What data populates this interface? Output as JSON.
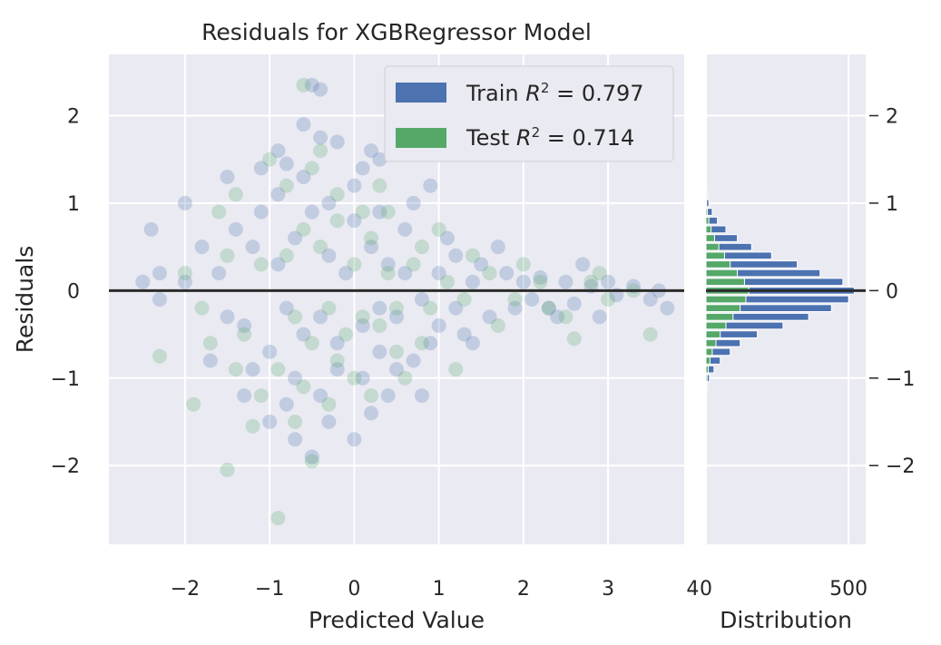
{
  "colors": {
    "background": "#eaeaf2",
    "grid": "#ffffff",
    "train": "#4c72b0",
    "test": "#55a868",
    "zero_line": "#2b2b2b"
  },
  "chart_data": [
    {
      "type": "scatter",
      "title": "Residuals for XGBRegressor Model",
      "xlabel": "Predicted Value",
      "ylabel": "Residuals",
      "xlim": [
        -2.9,
        3.9
      ],
      "ylim": [
        -2.9,
        2.7
      ],
      "xticks": [
        -2,
        -1,
        0,
        1,
        2,
        3,
        4
      ],
      "xtick_labels": [
        "−2",
        "−1",
        "0",
        "1",
        "2",
        "3",
        "4"
      ],
      "yticks": [
        -2,
        -1,
        0,
        1,
        2
      ],
      "ytick_labels": [
        "−2",
        "−1",
        "0",
        "1",
        "2"
      ],
      "grid": true,
      "hline": 0,
      "legend_position": "top-right",
      "series": [
        {
          "name": "Train R² = 0.797",
          "label_prefix": "Train",
          "r2": "0.797",
          "color": "#4c72b0",
          "points": [
            [
              -0.9,
              0.3
            ],
            [
              -0.8,
              -0.2
            ],
            [
              -0.7,
              0.6
            ],
            [
              -0.6,
              -0.5
            ],
            [
              -0.5,
              0.9
            ],
            [
              -0.4,
              -0.3
            ],
            [
              -0.3,
              0.4
            ],
            [
              -0.2,
              -0.6
            ],
            [
              -0.1,
              0.2
            ],
            [
              0.0,
              0.8
            ],
            [
              0.1,
              -0.4
            ],
            [
              0.2,
              0.5
            ],
            [
              0.3,
              -0.2
            ],
            [
              0.4,
              0.3
            ],
            [
              0.5,
              -0.3
            ],
            [
              0.6,
              0.2
            ],
            [
              0.8,
              -0.1
            ],
            [
              1.0,
              0.2
            ],
            [
              1.2,
              -0.2
            ],
            [
              1.4,
              0.1
            ],
            [
              -1.0,
              -0.7
            ],
            [
              -0.9,
              1.1
            ],
            [
              -0.7,
              -1.0
            ],
            [
              -0.6,
              1.3
            ],
            [
              -0.4,
              -1.2
            ],
            [
              -0.3,
              1.0
            ],
            [
              -0.2,
              -0.9
            ],
            [
              0.0,
              1.2
            ],
            [
              0.1,
              -1.0
            ],
            [
              0.3,
              0.9
            ],
            [
              -1.2,
              0.5
            ],
            [
              -1.3,
              -0.4
            ],
            [
              -1.4,
              0.7
            ],
            [
              -1.5,
              -0.3
            ],
            [
              -1.6,
              0.2
            ],
            [
              -1.8,
              0.5
            ],
            [
              -2.0,
              0.1
            ],
            [
              -2.3,
              0.2
            ],
            [
              -2.5,
              0.1
            ],
            [
              -1.1,
              0.9
            ],
            [
              -0.5,
              2.35
            ],
            [
              -0.4,
              2.3
            ],
            [
              -0.6,
              1.9
            ],
            [
              -0.4,
              1.75
            ],
            [
              -0.2,
              1.7
            ],
            [
              0.2,
              1.6
            ],
            [
              0.3,
              1.5
            ],
            [
              -0.9,
              1.6
            ],
            [
              -1.1,
              1.4
            ],
            [
              -1.5,
              1.3
            ],
            [
              -2.0,
              1.0
            ],
            [
              -2.4,
              0.7
            ],
            [
              -2.3,
              -0.1
            ],
            [
              -1.7,
              -0.8
            ],
            [
              -1.3,
              -1.2
            ],
            [
              -1.0,
              -1.5
            ],
            [
              -0.7,
              -1.7
            ],
            [
              -0.5,
              -1.9
            ],
            [
              0.0,
              -1.7
            ],
            [
              0.2,
              -1.4
            ],
            [
              0.4,
              -1.2
            ],
            [
              0.5,
              -0.9
            ],
            [
              0.7,
              -0.8
            ],
            [
              0.8,
              -1.2
            ],
            [
              0.9,
              -0.6
            ],
            [
              1.0,
              -0.4
            ],
            [
              1.2,
              0.4
            ],
            [
              1.3,
              -0.5
            ],
            [
              1.5,
              0.3
            ],
            [
              1.6,
              -0.3
            ],
            [
              1.8,
              0.2
            ],
            [
              1.9,
              -0.2
            ],
            [
              2.0,
              0.1
            ],
            [
              2.1,
              -0.1
            ],
            [
              2.2,
              0.15
            ],
            [
              2.3,
              -0.2
            ],
            [
              2.5,
              0.1
            ],
            [
              2.6,
              -0.15
            ],
            [
              2.8,
              0.05
            ],
            [
              2.9,
              -0.3
            ],
            [
              3.0,
              0.1
            ],
            [
              3.1,
              -0.05
            ],
            [
              3.3,
              0.05
            ],
            [
              3.5,
              -0.1
            ],
            [
              3.6,
              0.0
            ],
            [
              3.7,
              -0.2
            ],
            [
              2.7,
              0.3
            ],
            [
              2.4,
              -0.3
            ],
            [
              1.7,
              0.5
            ],
            [
              0.6,
              0.7
            ],
            [
              0.9,
              1.2
            ],
            [
              0.7,
              1.0
            ],
            [
              -0.8,
              1.45
            ],
            [
              -1.2,
              -0.9
            ],
            [
              -0.8,
              -1.3
            ],
            [
              -0.3,
              -1.5
            ],
            [
              0.3,
              -0.7
            ],
            [
              1.1,
              0.6
            ],
            [
              1.4,
              -0.6
            ],
            [
              0.1,
              1.4
            ]
          ]
        },
        {
          "name": "Test R² = 0.714",
          "label_prefix": "Test",
          "r2": "0.714",
          "color": "#55a868",
          "points": [
            [
              -0.8,
              0.4
            ],
            [
              -0.7,
              -0.3
            ],
            [
              -0.6,
              0.7
            ],
            [
              -0.5,
              -0.6
            ],
            [
              -0.4,
              0.5
            ],
            [
              -0.3,
              -0.2
            ],
            [
              -0.2,
              0.8
            ],
            [
              -0.1,
              -0.5
            ],
            [
              0.0,
              0.3
            ],
            [
              0.1,
              -0.3
            ],
            [
              0.2,
              0.6
            ],
            [
              0.3,
              -0.4
            ],
            [
              0.4,
              0.2
            ],
            [
              0.5,
              -0.2
            ],
            [
              0.7,
              0.3
            ],
            [
              0.9,
              -0.2
            ],
            [
              1.1,
              0.1
            ],
            [
              1.3,
              -0.1
            ],
            [
              -0.9,
              -0.9
            ],
            [
              -0.8,
              1.2
            ],
            [
              -0.6,
              -1.1
            ],
            [
              -0.5,
              1.4
            ],
            [
              -0.3,
              -1.3
            ],
            [
              -0.2,
              1.1
            ],
            [
              0.0,
              -1.0
            ],
            [
              0.1,
              0.9
            ],
            [
              -1.1,
              0.3
            ],
            [
              -1.3,
              -0.5
            ],
            [
              -1.5,
              0.4
            ],
            [
              -1.7,
              -0.6
            ],
            [
              -1.9,
              -1.3
            ],
            [
              -1.5,
              -2.05
            ],
            [
              -0.9,
              -2.6
            ],
            [
              -0.5,
              -1.95
            ],
            [
              -2.3,
              -0.75
            ],
            [
              -0.6,
              2.35
            ],
            [
              -1.0,
              1.5
            ],
            [
              -1.2,
              -1.55
            ],
            [
              0.5,
              -0.7
            ],
            [
              0.8,
              0.5
            ],
            [
              1.2,
              -0.9
            ],
            [
              1.6,
              0.2
            ],
            [
              1.9,
              -0.1
            ],
            [
              2.2,
              0.1
            ],
            [
              2.5,
              -0.3
            ],
            [
              2.6,
              -0.55
            ],
            [
              2.8,
              0.1
            ],
            [
              3.0,
              -0.1
            ],
            [
              3.5,
              -0.5
            ],
            [
              3.3,
              0.0
            ],
            [
              -0.4,
              1.6
            ],
            [
              0.3,
              1.2
            ],
            [
              -1.4,
              1.1
            ],
            [
              -1.6,
              0.9
            ],
            [
              -2.0,
              0.2
            ],
            [
              -1.8,
              -0.2
            ],
            [
              -1.4,
              -0.9
            ],
            [
              -1.1,
              -1.2
            ],
            [
              -0.7,
              -1.5
            ],
            [
              0.2,
              -1.2
            ],
            [
              0.6,
              -1.0
            ],
            [
              1.0,
              0.7
            ],
            [
              1.4,
              0.4
            ],
            [
              2.0,
              0.3
            ],
            [
              2.3,
              -0.2
            ],
            [
              2.9,
              0.2
            ],
            [
              -0.2,
              -0.8
            ],
            [
              0.4,
              0.9
            ],
            [
              0.8,
              -0.6
            ],
            [
              1.7,
              -0.4
            ]
          ]
        }
      ]
    },
    {
      "type": "bar",
      "orientation": "horizontal",
      "xlabel": "Distribution",
      "xticks": [
        0,
        500
      ],
      "xtick_labels": [
        "0",
        "500"
      ],
      "xlim": [
        0,
        560
      ],
      "ylim": [
        -2.9,
        2.7
      ],
      "yticks": [
        -2,
        -1,
        0,
        1,
        2
      ],
      "ytick_labels": [
        "−2",
        "−1",
        "0",
        "1",
        "2"
      ],
      "bin_centers": [
        -1.1,
        -1.0,
        -0.9,
        -0.8,
        -0.7,
        -0.6,
        -0.5,
        -0.4,
        -0.3,
        -0.2,
        -0.1,
        0.0,
        0.1,
        0.2,
        0.3,
        0.4,
        0.5,
        0.6,
        0.7,
        0.8,
        0.9,
        1.0,
        1.1
      ],
      "bin_height": 0.08,
      "series": [
        {
          "name": "Train",
          "color": "#4c72b0",
          "values": [
            3,
            12,
            28,
            50,
            85,
            120,
            180,
            270,
            360,
            440,
            500,
            520,
            480,
            400,
            320,
            230,
            160,
            110,
            70,
            40,
            22,
            10,
            4
          ]
        },
        {
          "name": "Test",
          "color": "#55a868",
          "values": [
            1,
            4,
            8,
            14,
            22,
            35,
            50,
            70,
            95,
            120,
            140,
            150,
            135,
            110,
            85,
            65,
            45,
            30,
            18,
            10,
            5,
            2,
            1
          ]
        }
      ]
    }
  ]
}
